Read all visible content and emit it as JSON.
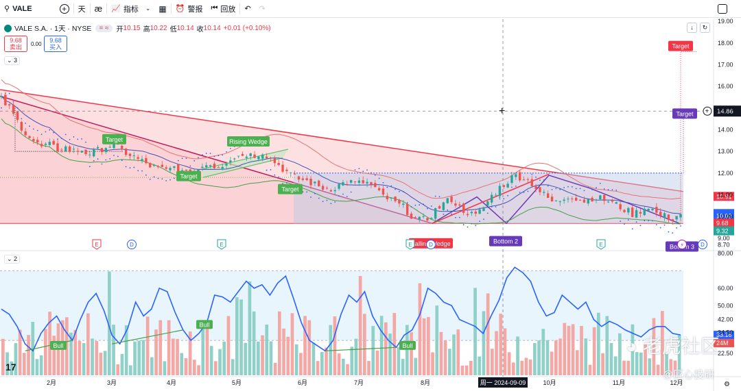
{
  "toolbar": {
    "symbol": "VALE",
    "interval": "天",
    "indicators_label": "指标",
    "alert_label": "警报",
    "replay_label": "回放"
  },
  "legend": {
    "title": "VALE S.A. · 1天 · NYSE",
    "open_label": "开",
    "open": "10.15",
    "high_label": "高",
    "high": "10.22",
    "low_label": "低",
    "low": "10.14",
    "close_label": "收",
    "close": "10.14",
    "change": "+0.01 (+0.10%)",
    "pill": "= ≈"
  },
  "trade": {
    "sell_price": "9.68",
    "sell_label": "卖出",
    "spread": "0.00",
    "buy_price": "9.68",
    "buy_label": "买入"
  },
  "indicator_tags": {
    "price_pane": "3",
    "lower_pane": "2"
  },
  "colors": {
    "up": "#26a69a",
    "down": "#ef5350",
    "pattern_red": "#f23645",
    "purple": "#673ab7",
    "green_label": "#4caf50",
    "blue": "#2962ff",
    "wedge_fill": "#fcd5d8",
    "box_fill": "#b7c9e6",
    "rsi_bg": "#e3f2fd"
  },
  "chart_data": [
    {
      "type": "candlestick",
      "symbol": "VALE",
      "exchange": "NYSE",
      "price_axis_ticks": [
        "19.00",
        "18.00",
        "17.00",
        "16.00",
        "15.00",
        "14.00",
        "13.00",
        "12.00",
        "11.00",
        "10.00",
        "9.00",
        "8.70"
      ],
      "ylim": [
        8.55,
        19.1
      ],
      "time_axis_ticks": [
        "2月",
        "3月",
        "4月",
        "5月",
        "6月",
        "7月",
        "8月",
        "周一 2024-09-09",
        "10月",
        "11月",
        "12月"
      ],
      "crosshair": {
        "date": "周一 2024-09-09",
        "price": "14.86"
      },
      "price_labels": [
        {
          "value": "10.91",
          "color": "#f23645"
        },
        {
          "value": "10.12",
          "color": "#2962ff"
        },
        {
          "value": "10.02",
          "color": "#2962ff"
        },
        {
          "value": "9.68",
          "color": "#f23645"
        },
        {
          "value": "9.32",
          "color": "#26a69a"
        }
      ],
      "pattern_labels": [
        {
          "text": "Target",
          "color": "#4caf50"
        },
        {
          "text": "Rising Wedge",
          "color": "#4caf50"
        },
        {
          "text": "Target",
          "color": "#4caf50"
        },
        {
          "text": "Target",
          "color": "#4caf50"
        },
        {
          "text": "Falling Wedge",
          "color": "#f23645"
        },
        {
          "text": "Bottom 2",
          "color": "#673ab7"
        },
        {
          "text": "Bottom 3",
          "color": "#673ab7"
        },
        {
          "text": "Target",
          "color": "#f23645"
        },
        {
          "text": "Target",
          "color": "#673ab7"
        }
      ],
      "event_markers": [
        "E",
        "D",
        "E",
        "E",
        "D",
        "E",
        "D"
      ],
      "close_path": [
        15.4,
        15.0,
        14.4,
        13.9,
        13.5,
        13.2,
        13.3,
        13.1,
        13.2,
        13.0,
        13.1,
        12.9,
        13.0,
        13.2,
        13.3,
        13.1,
        12.9,
        12.7,
        12.5,
        12.3,
        12.2,
        12.1,
        12.3,
        12.0,
        11.9,
        12.2,
        12.5,
        12.3,
        12.4,
        12.7,
        12.8,
        12.9,
        12.8,
        13.0,
        12.7,
        12.4,
        12.1,
        11.8,
        11.7,
        11.6,
        11.4,
        11.3,
        11.3,
        11.5,
        11.6,
        11.5,
        11.6,
        11.4,
        11.0,
        10.8,
        10.6,
        10.4,
        10.0,
        9.8,
        9.9,
        10.3,
        10.6,
        10.8,
        10.4,
        10.2,
        10.0,
        10.4,
        10.9,
        11.3,
        11.6,
        11.9,
        11.8,
        11.6,
        11.2,
        10.9,
        10.6,
        10.8,
        11.0,
        10.8,
        10.7,
        10.9,
        10.8,
        10.7,
        10.5,
        10.3,
        10.1,
        10.3,
        10.5,
        10.1,
        10.0,
        9.9,
        10.14
      ]
    },
    {
      "type": "line",
      "name": "RSI",
      "axis_ticks": [
        "80.00",
        "60.00",
        "50.00",
        "42.00",
        "34.50",
        "22.50"
      ],
      "ylim": [
        10,
        80
      ],
      "current_labels": [
        {
          "value": "33.16",
          "color": "#2962ff"
        },
        {
          "value": "24M",
          "color": "#ef5350"
        }
      ],
      "divergence_labels": [
        "Bull",
        "Bull",
        "Bull"
      ],
      "values": [
        48,
        45,
        38,
        28,
        24,
        34,
        40,
        44,
        36,
        30,
        42,
        52,
        57,
        47,
        33,
        28,
        37,
        52,
        44,
        48,
        60,
        58,
        46,
        36,
        30,
        34,
        40,
        56,
        55,
        52,
        58,
        64,
        60,
        62,
        56,
        63,
        67,
        54,
        40,
        30,
        27,
        24,
        30,
        45,
        56,
        52,
        58,
        44,
        36,
        30,
        26,
        33,
        36,
        45,
        60,
        57,
        52,
        50,
        42,
        40,
        38,
        34,
        44,
        53,
        66,
        72,
        69,
        64,
        52,
        44,
        46,
        56,
        52,
        48,
        52,
        42,
        38,
        41,
        39,
        36,
        34,
        32,
        36,
        38,
        38,
        34,
        33.16
      ],
      "volume_ticks": [
        "24M"
      ],
      "volume_count": 160
    }
  ]
}
